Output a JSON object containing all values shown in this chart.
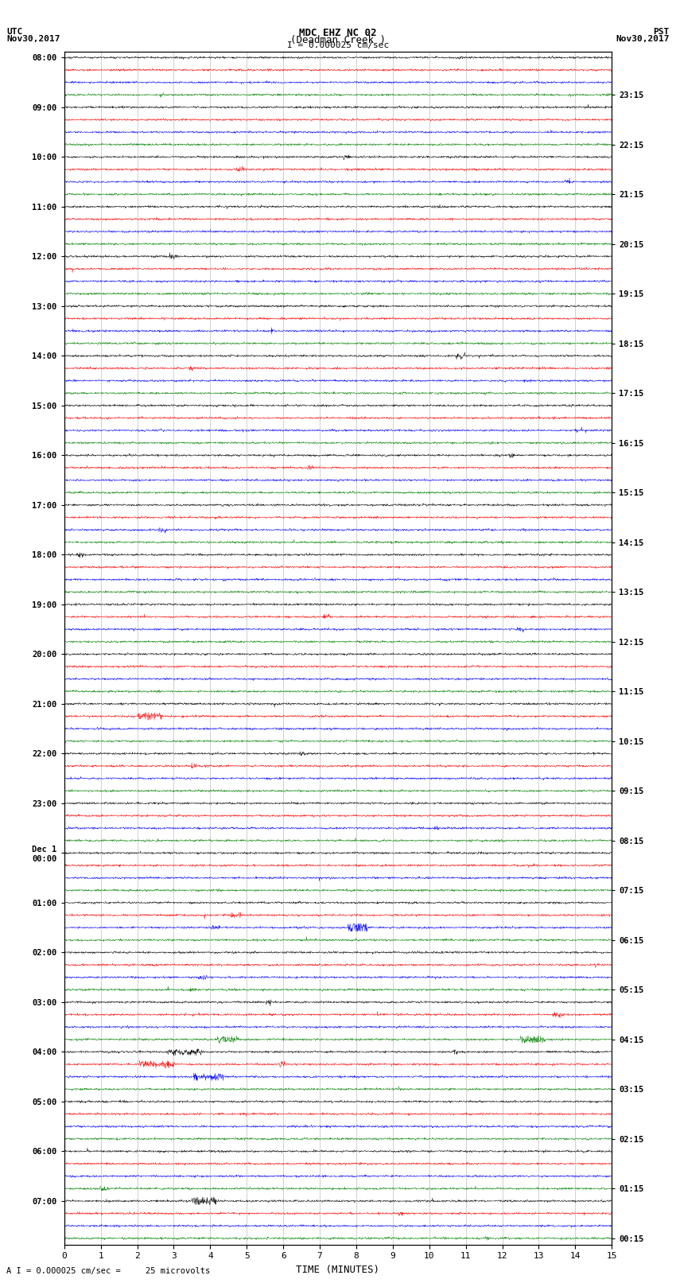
{
  "title_line1": "MDC EHZ NC 02",
  "title_line2": "(Deadman Creek )",
  "title_line3": "I = 0.000025 cm/sec",
  "left_header_line1": "UTC",
  "left_header_line2": "Nov30,2017",
  "right_header_line1": "PST",
  "right_header_line2": "Nov30,2017",
  "xlabel": "TIME (MINUTES)",
  "footnote": "A I = 0.000025 cm/sec =     25 microvolts",
  "utc_labels": [
    "08:00",
    "09:00",
    "10:00",
    "11:00",
    "12:00",
    "13:00",
    "14:00",
    "15:00",
    "16:00",
    "17:00",
    "18:00",
    "19:00",
    "20:00",
    "21:00",
    "22:00",
    "23:00",
    "Dec 1\n00:00",
    "01:00",
    "02:00",
    "03:00",
    "04:00",
    "05:00",
    "06:00",
    "07:00"
  ],
  "pst_labels": [
    "00:15",
    "01:15",
    "02:15",
    "03:15",
    "04:15",
    "05:15",
    "06:15",
    "07:15",
    "08:15",
    "09:15",
    "10:15",
    "11:15",
    "12:15",
    "13:15",
    "14:15",
    "15:15",
    "16:15",
    "17:15",
    "18:15",
    "19:15",
    "20:15",
    "21:15",
    "22:15",
    "23:15"
  ],
  "colors": [
    "black",
    "red",
    "blue",
    "green"
  ],
  "n_rows": 96,
  "time_minutes": 15,
  "background_color": "white",
  "trace_amplitude": 0.3,
  "n_points": 1800,
  "noise_std": 0.04,
  "linewidth": 0.35
}
